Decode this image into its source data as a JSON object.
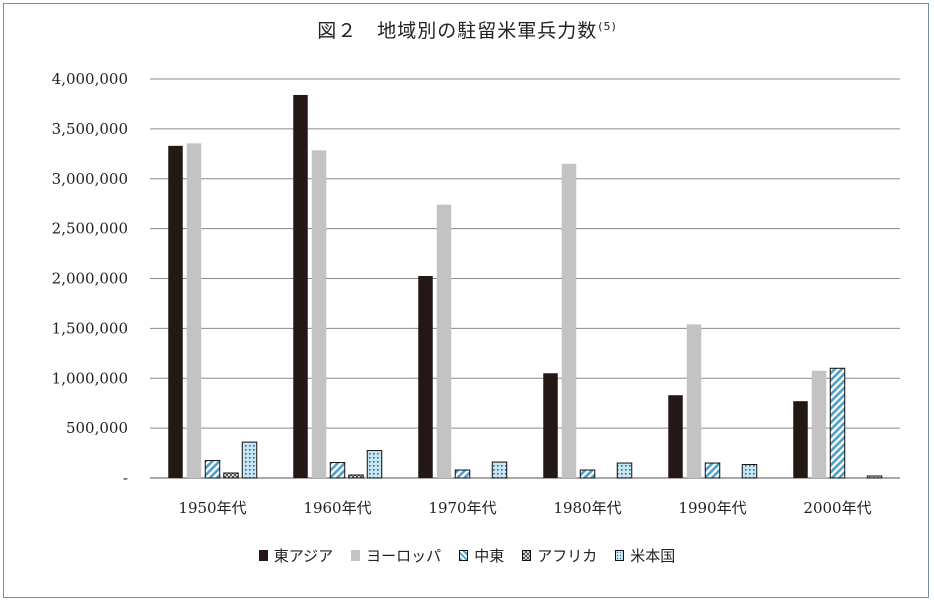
{
  "title": "図２　地域別の駐留米軍兵力数",
  "title_note": "(5)",
  "chart_data": {
    "type": "bar",
    "categories": [
      "1950年代",
      "1960年代",
      "1970年代",
      "1980年代",
      "1990年代",
      "2000年代"
    ],
    "series": [
      {
        "name": "東アジア",
        "values": [
          3330000,
          3840000,
          2025000,
          1050000,
          830000,
          770000
        ],
        "color": "#231815",
        "pattern": "solid"
      },
      {
        "name": "ヨーロッパ",
        "values": [
          3355000,
          3285000,
          2740000,
          3150000,
          1540000,
          1075000
        ],
        "color": "#c3c3c3",
        "pattern": "solid"
      },
      {
        "name": "中東",
        "values": [
          175000,
          155000,
          80000,
          80000,
          150000,
          1100000
        ],
        "color": "#a9d6ec",
        "pattern": "hatch"
      },
      {
        "name": "アフリカ",
        "values": [
          50000,
          30000,
          0,
          0,
          0,
          0
        ],
        "color": "#888888",
        "pattern": "checker"
      },
      {
        "name": "米本国",
        "values": [
          360000,
          275000,
          160000,
          150000,
          135000,
          20000
        ],
        "color": "#a9d6ec",
        "pattern": "dots"
      }
    ],
    "yticks": [
      "-",
      "500,000",
      "1,000,000",
      "1,500,000",
      "2,000,000",
      "2,500,000",
      "3,000,000",
      "3,500,000",
      "4,000,000"
    ],
    "ylim": [
      0,
      4000000
    ],
    "grid": true,
    "legend_position": "bottom"
  }
}
